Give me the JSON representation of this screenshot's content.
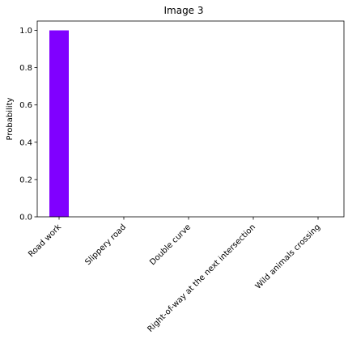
{
  "chart_data": {
    "type": "bar",
    "title": "Image 3",
    "xlabel": "",
    "ylabel": "Probability",
    "categories": [
      "Road work",
      "Slippery road",
      "Double curve",
      "Right-of-way at the next intersection",
      "Wild animals crossing"
    ],
    "values": [
      1.0,
      0.0,
      0.0,
      0.0,
      0.0
    ],
    "ylim": [
      0,
      1.05
    ],
    "yticks": [
      0.0,
      0.2,
      0.4,
      0.6,
      0.8,
      1.0
    ],
    "ytick_labels": [
      "0.0",
      "0.2",
      "0.4",
      "0.6",
      "0.8",
      "1.0"
    ],
    "grid": false,
    "bar_color": "#8000ff"
  }
}
